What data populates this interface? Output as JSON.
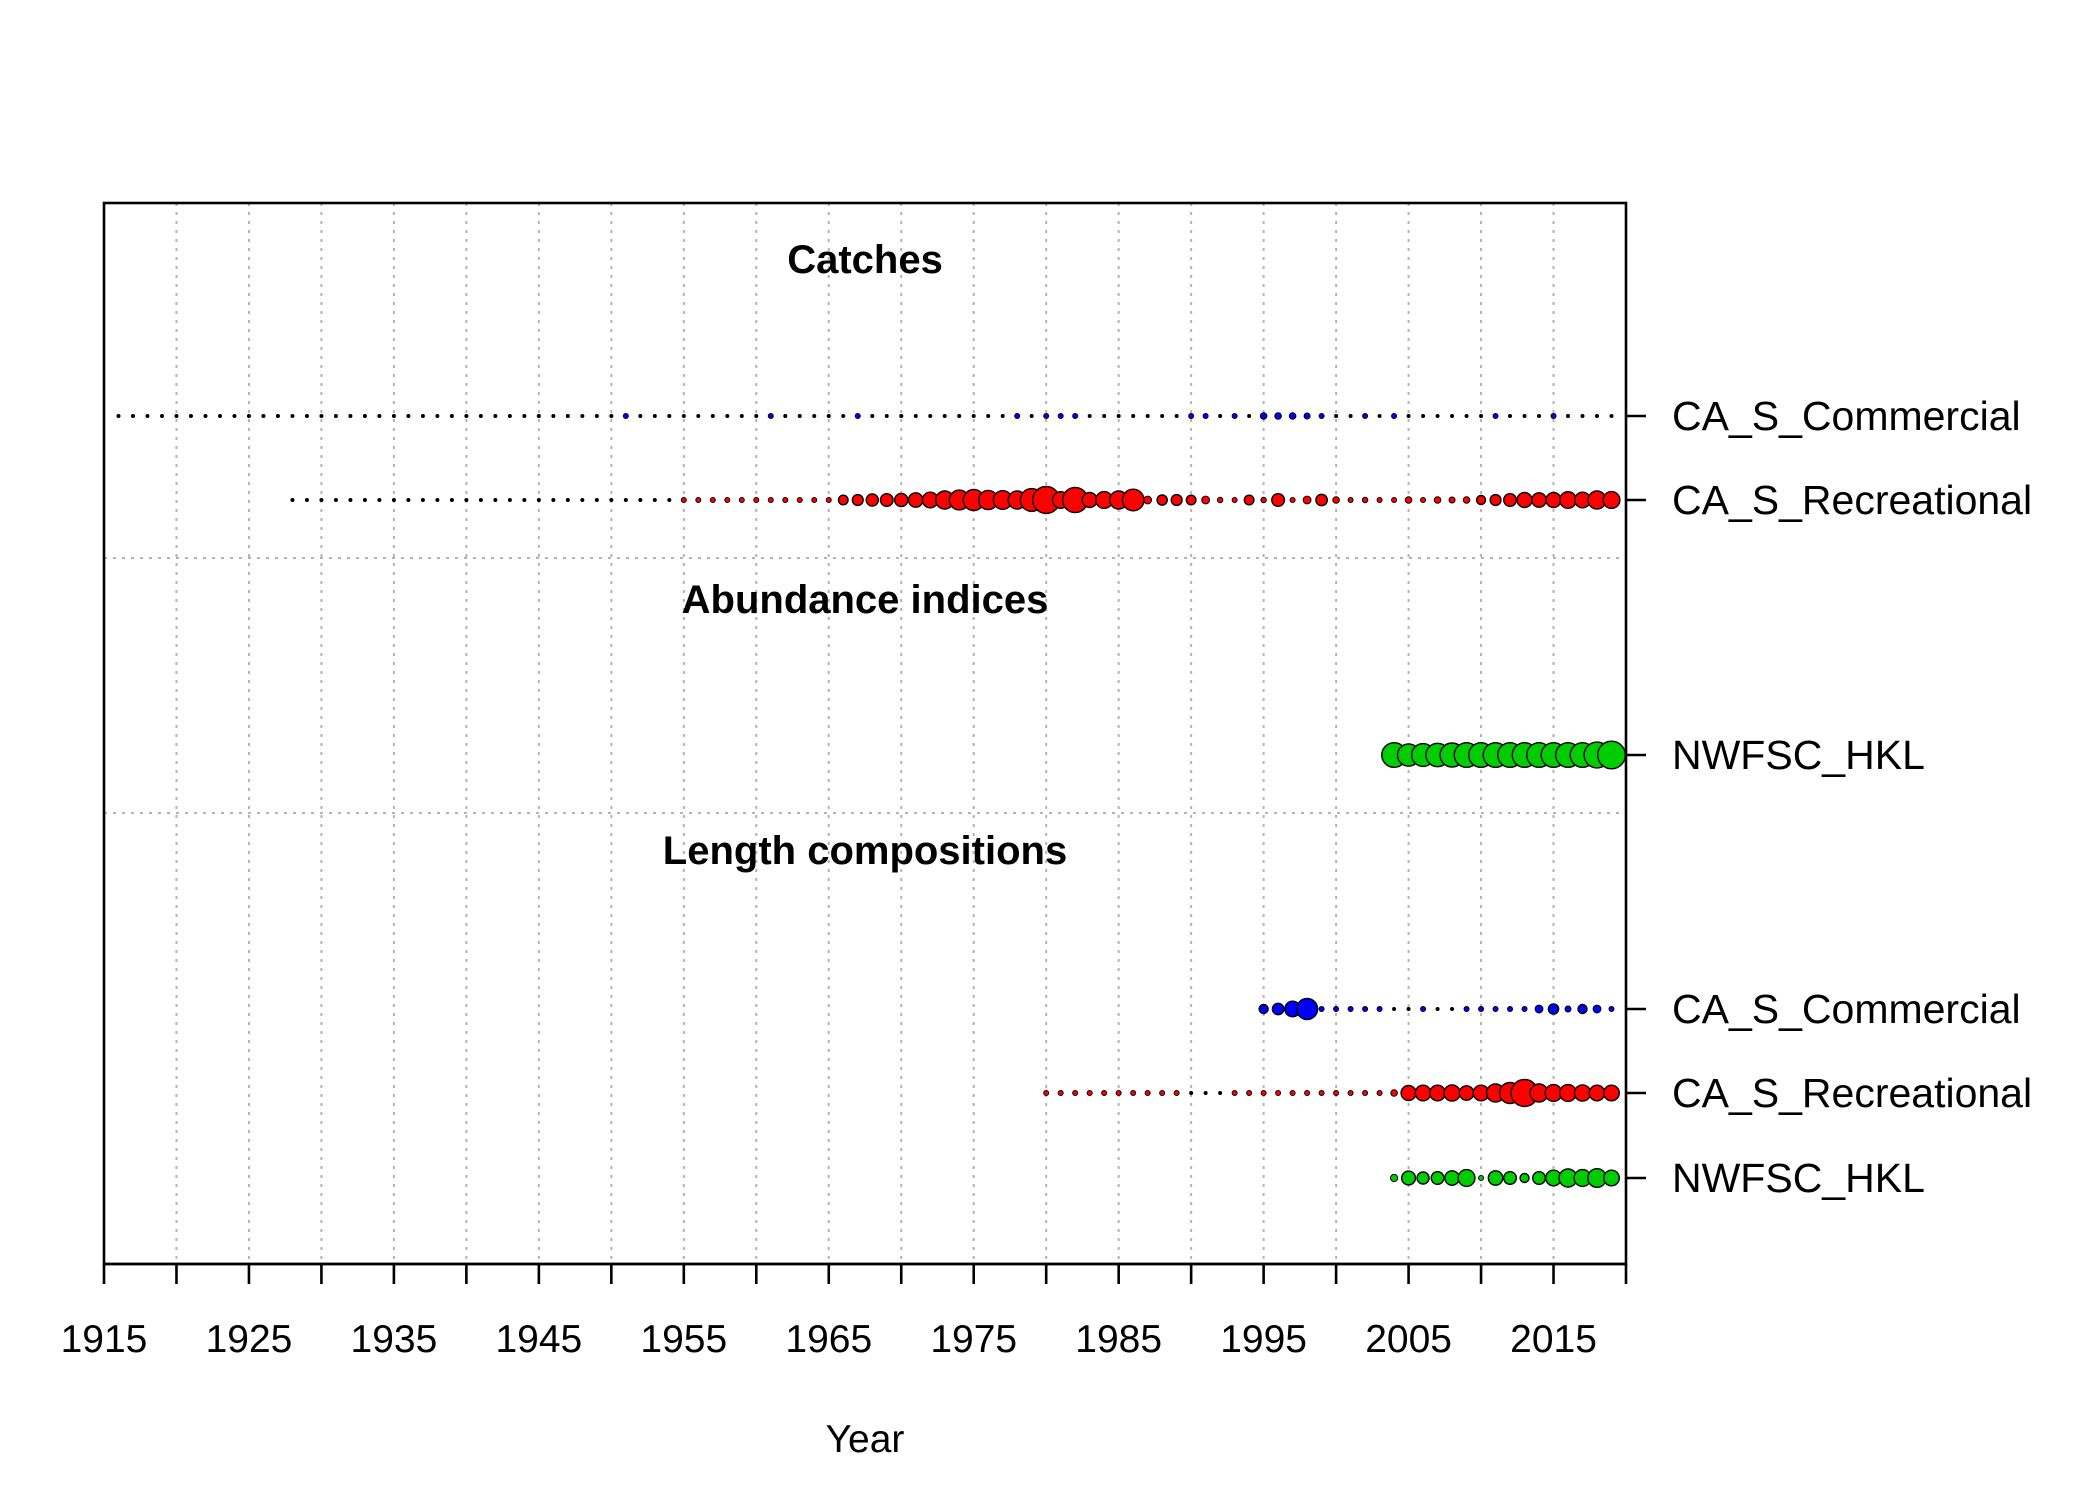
{
  "chart_data": {
    "type": "scatter",
    "xlabel": "Year",
    "xlim": [
      1915,
      2020
    ],
    "x_tick_values": [
      1915,
      1920,
      1925,
      1930,
      1935,
      1940,
      1945,
      1950,
      1955,
      1960,
      1965,
      1970,
      1975,
      1980,
      1985,
      1990,
      1995,
      2000,
      2005,
      2010,
      2015,
      2020
    ],
    "x_tick_labels": [
      "1915",
      "1925",
      "1935",
      "1945",
      "1955",
      "1965",
      "1975",
      "1985",
      "1995",
      "2005",
      "2015"
    ],
    "grid": true,
    "marker_size_encodes": "relative data amount per year",
    "sections": [
      {
        "title": "Catches",
        "rows": [
          {
            "label": "CA_S_Commercial",
            "color": "#0000FF",
            "first_year": 1916,
            "last_year": 2019,
            "sizes": [
              [
                1995,
                0.22
              ],
              [
                1996,
                0.22
              ],
              [
                1997,
                0.22
              ],
              [
                1998,
                0.2
              ],
              [
                1951,
                0.04
              ],
              [
                1961,
                0.04
              ],
              [
                1967,
                0.04
              ],
              [
                1978,
                0.04
              ],
              [
                1980,
                0.04
              ],
              [
                1981,
                0.05
              ],
              [
                1982,
                0.05
              ],
              [
                1990,
                0.05
              ],
              [
                1991,
                0.06
              ],
              [
                1993,
                0.05
              ],
              [
                1999,
                0.05
              ],
              [
                2002,
                0.04
              ],
              [
                2004,
                0.04
              ],
              [
                2011,
                0.04
              ],
              [
                2015,
                0.05
              ]
            ]
          },
          {
            "label": "CA_S_Recreational",
            "color": "#FF0000",
            "first_year": 1928,
            "last_year": 2019,
            "sizes": [
              [
                1955,
                0.1
              ],
              [
                1956,
                0.13
              ],
              [
                1957,
                0.09
              ],
              [
                1958,
                0.08
              ],
              [
                1959,
                0.08
              ],
              [
                1960,
                0.09
              ],
              [
                1961,
                0.1
              ],
              [
                1962,
                0.11
              ],
              [
                1963,
                0.12
              ],
              [
                1964,
                0.14
              ],
              [
                1965,
                0.16
              ],
              [
                1966,
                0.32
              ],
              [
                1967,
                0.36
              ],
              [
                1968,
                0.4
              ],
              [
                1969,
                0.42
              ],
              [
                1970,
                0.44
              ],
              [
                1971,
                0.48
              ],
              [
                1972,
                0.52
              ],
              [
                1973,
                0.6
              ],
              [
                1974,
                0.66
              ],
              [
                1975,
                0.7
              ],
              [
                1976,
                0.64
              ],
              [
                1977,
                0.62
              ],
              [
                1978,
                0.6
              ],
              [
                1979,
                0.76
              ],
              [
                1980,
                0.9
              ],
              [
                1981,
                0.55
              ],
              [
                1982,
                0.84
              ],
              [
                1983,
                0.5
              ],
              [
                1984,
                0.56
              ],
              [
                1985,
                0.6
              ],
              [
                1986,
                0.72
              ],
              [
                1987,
                0.26
              ],
              [
                1988,
                0.34
              ],
              [
                1989,
                0.36
              ],
              [
                1990,
                0.32
              ],
              [
                1991,
                0.26
              ],
              [
                1992,
                0.18
              ],
              [
                1993,
                0.16
              ],
              [
                1994,
                0.32
              ],
              [
                1995,
                0.18
              ],
              [
                1996,
                0.42
              ],
              [
                1997,
                0.16
              ],
              [
                1998,
                0.26
              ],
              [
                1999,
                0.38
              ],
              [
                2000,
                0.22
              ],
              [
                2001,
                0.14
              ],
              [
                2002,
                0.18
              ],
              [
                2003,
                0.14
              ],
              [
                2004,
                0.16
              ],
              [
                2005,
                0.22
              ],
              [
                2006,
                0.16
              ],
              [
                2007,
                0.22
              ],
              [
                2008,
                0.2
              ],
              [
                2009,
                0.22
              ],
              [
                2010,
                0.3
              ],
              [
                2011,
                0.36
              ],
              [
                2012,
                0.42
              ],
              [
                2013,
                0.5
              ],
              [
                2014,
                0.48
              ],
              [
                2015,
                0.5
              ],
              [
                2016,
                0.55
              ],
              [
                2017,
                0.52
              ],
              [
                2018,
                0.6
              ],
              [
                2019,
                0.56
              ]
            ]
          }
        ]
      },
      {
        "title": "Abundance indices",
        "rows": [
          {
            "label": "NWFSC_HKL",
            "color": "#00CD00",
            "first_year": 2004,
            "last_year": 2019,
            "sizes": [
              [
                2004,
                0.82
              ],
              [
                2005,
                0.74
              ],
              [
                2006,
                0.76
              ],
              [
                2007,
                0.78
              ],
              [
                2008,
                0.8
              ],
              [
                2009,
                0.82
              ],
              [
                2010,
                0.82
              ],
              [
                2011,
                0.82
              ],
              [
                2012,
                0.82
              ],
              [
                2013,
                0.82
              ],
              [
                2014,
                0.82
              ],
              [
                2015,
                0.82
              ],
              [
                2016,
                0.82
              ],
              [
                2017,
                0.82
              ],
              [
                2018,
                0.86
              ],
              [
                2019,
                0.92
              ]
            ]
          }
        ]
      },
      {
        "title": "Length compositions",
        "rows": [
          {
            "label": "CA_S_Commercial",
            "color": "#0000FF",
            "first_year": 1995,
            "last_year": 2019,
            "sizes": [
              [
                1995,
                0.3
              ],
              [
                1996,
                0.38
              ],
              [
                1997,
                0.52
              ],
              [
                1998,
                0.7
              ],
              [
                1999,
                0.14
              ],
              [
                2000,
                0.07
              ],
              [
                2001,
                0.06
              ],
              [
                2002,
                0.06
              ],
              [
                2003,
                0.06
              ],
              [
                2006,
                0.06
              ],
              [
                2009,
                0.07
              ],
              [
                2010,
                0.06
              ],
              [
                2011,
                0.07
              ],
              [
                2012,
                0.08
              ],
              [
                2013,
                0.1
              ],
              [
                2014,
                0.26
              ],
              [
                2015,
                0.34
              ],
              [
                2016,
                0.2
              ],
              [
                2017,
                0.3
              ],
              [
                2018,
                0.26
              ],
              [
                2019,
                0.06
              ]
            ]
          },
          {
            "label": "CA_S_Recreational",
            "color": "#FF0000",
            "first_year": 1980,
            "last_year": 2019,
            "sizes": [
              [
                1980,
                0.14
              ],
              [
                1981,
                0.12
              ],
              [
                1982,
                0.1
              ],
              [
                1983,
                0.09
              ],
              [
                1984,
                0.09
              ],
              [
                1985,
                0.1
              ],
              [
                1986,
                0.08
              ],
              [
                1987,
                0.06
              ],
              [
                1988,
                0.06
              ],
              [
                1989,
                0.06
              ],
              [
                1993,
                0.05
              ],
              [
                1994,
                0.05
              ],
              [
                1995,
                0.05
              ],
              [
                1996,
                0.06
              ],
              [
                1997,
                0.08
              ],
              [
                1998,
                0.1
              ],
              [
                1999,
                0.12
              ],
              [
                2000,
                0.06
              ],
              [
                2001,
                0.05
              ],
              [
                2002,
                0.05
              ],
              [
                2003,
                0.06
              ],
              [
                2004,
                0.22
              ],
              [
                2005,
                0.5
              ],
              [
                2006,
                0.52
              ],
              [
                2007,
                0.52
              ],
              [
                2008,
                0.54
              ],
              [
                2009,
                0.48
              ],
              [
                2010,
                0.52
              ],
              [
                2011,
                0.6
              ],
              [
                2012,
                0.7
              ],
              [
                2013,
                0.9
              ],
              [
                2014,
                0.6
              ],
              [
                2015,
                0.56
              ],
              [
                2016,
                0.56
              ],
              [
                2017,
                0.54
              ],
              [
                2018,
                0.52
              ],
              [
                2019,
                0.52
              ]
            ]
          },
          {
            "label": "NWFSC_HKL",
            "color": "#00CD00",
            "first_year": 2004,
            "last_year": 2019,
            "sizes": [
              [
                2004,
                0.24
              ],
              [
                2005,
                0.46
              ],
              [
                2006,
                0.4
              ],
              [
                2007,
                0.42
              ],
              [
                2008,
                0.48
              ],
              [
                2009,
                0.56
              ],
              [
                2010,
                0.16
              ],
              [
                2011,
                0.48
              ],
              [
                2012,
                0.42
              ],
              [
                2013,
                0.3
              ],
              [
                2014,
                0.42
              ],
              [
                2015,
                0.52
              ],
              [
                2016,
                0.6
              ],
              [
                2017,
                0.56
              ],
              [
                2018,
                0.62
              ],
              [
                2019,
                0.52
              ]
            ]
          }
        ]
      }
    ]
  }
}
